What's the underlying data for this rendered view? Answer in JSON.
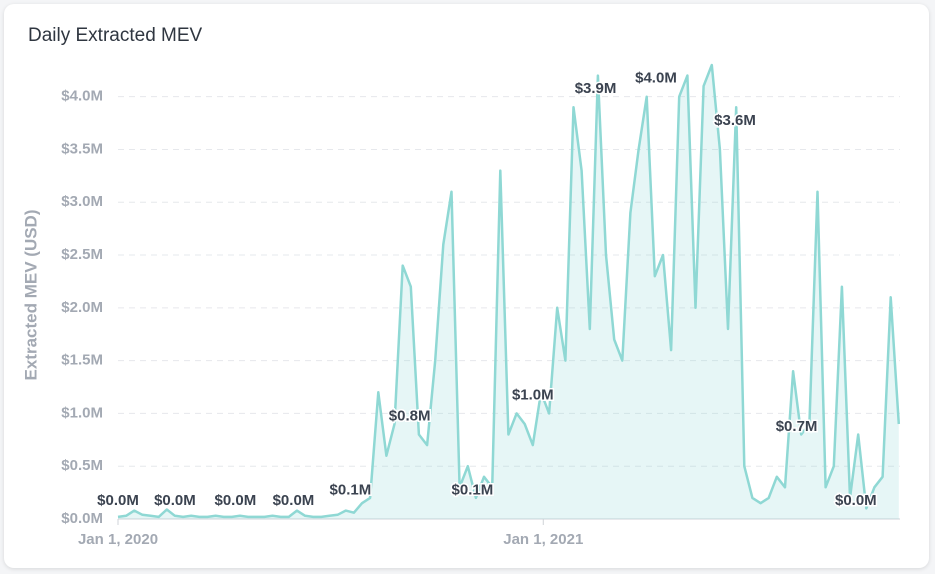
{
  "chart_data": {
    "type": "area",
    "title": "Daily Extracted MEV",
    "y_label": "Extracted MEV (USD)",
    "x": [
      "2020-01-01",
      "2020-01-08",
      "2020-01-15",
      "2020-01-22",
      "2020-01-29",
      "2020-02-05",
      "2020-02-12",
      "2020-02-19",
      "2020-02-26",
      "2020-03-04",
      "2020-03-11",
      "2020-03-18",
      "2020-03-25",
      "2020-04-01",
      "2020-04-08",
      "2020-04-15",
      "2020-04-22",
      "2020-04-29",
      "2020-05-06",
      "2020-05-13",
      "2020-05-20",
      "2020-05-27",
      "2020-06-03",
      "2020-06-10",
      "2020-06-17",
      "2020-06-24",
      "2020-07-01",
      "2020-07-08",
      "2020-07-15",
      "2020-07-22",
      "2020-07-29",
      "2020-08-05",
      "2020-08-12",
      "2020-08-19",
      "2020-08-26",
      "2020-09-02",
      "2020-09-09",
      "2020-09-16",
      "2020-09-23",
      "2020-09-30",
      "2020-10-07",
      "2020-10-14",
      "2020-10-21",
      "2020-10-28",
      "2020-11-04",
      "2020-11-11",
      "2020-11-18",
      "2020-11-25",
      "2020-12-02",
      "2020-12-09",
      "2020-12-16",
      "2020-12-23",
      "2020-12-30",
      "2021-01-06",
      "2021-01-13",
      "2021-01-20",
      "2021-01-27",
      "2021-02-03",
      "2021-02-10",
      "2021-02-17",
      "2021-02-24",
      "2021-03-03",
      "2021-03-10",
      "2021-03-17",
      "2021-03-24",
      "2021-03-31",
      "2021-04-07",
      "2021-04-14",
      "2021-04-21",
      "2021-04-28",
      "2021-05-05",
      "2021-05-12",
      "2021-05-19",
      "2021-05-26",
      "2021-06-02",
      "2021-06-09",
      "2021-06-16",
      "2021-06-23",
      "2021-06-30",
      "2021-07-07",
      "2021-07-14",
      "2021-07-21",
      "2021-07-28",
      "2021-08-04",
      "2021-08-11",
      "2021-08-18",
      "2021-08-25",
      "2021-09-01",
      "2021-09-08",
      "2021-09-15",
      "2021-09-22",
      "2021-09-29",
      "2021-10-06",
      "2021-10-13",
      "2021-10-20",
      "2021-10-27",
      "2021-11-03"
    ],
    "series": [
      {
        "name": "Extracted MEV",
        "color": "#8fd8d4",
        "values": [
          20000,
          30000,
          80000,
          40000,
          30000,
          20000,
          90000,
          30000,
          20000,
          30000,
          20000,
          20000,
          30000,
          20000,
          20000,
          30000,
          20000,
          20000,
          20000,
          30000,
          20000,
          20000,
          80000,
          30000,
          20000,
          20000,
          30000,
          40000,
          80000,
          60000,
          150000,
          200000,
          1200000,
          600000,
          900000,
          2400000,
          2200000,
          800000,
          700000,
          1500000,
          2600000,
          3100000,
          300000,
          500000,
          200000,
          400000,
          300000,
          3300000,
          800000,
          1000000,
          900000,
          700000,
          1200000,
          1000000,
          2000000,
          1500000,
          3900000,
          3300000,
          1800000,
          4200000,
          2500000,
          1700000,
          1500000,
          2900000,
          3500000,
          4000000,
          2300000,
          2500000,
          1600000,
          4000000,
          4200000,
          2000000,
          4100000,
          4300000,
          3500000,
          1800000,
          3900000,
          500000,
          200000,
          150000,
          200000,
          400000,
          300000,
          1400000,
          800000,
          900000,
          3100000,
          300000,
          500000,
          2200000,
          200000,
          800000,
          100000,
          300000,
          400000,
          2100000,
          900000
        ]
      }
    ],
    "annotations": [
      {
        "x": "2020-01-01",
        "value": 0,
        "label": "$0.0M"
      },
      {
        "x": "2020-02-19",
        "value": 0,
        "label": "$0.0M"
      },
      {
        "x": "2020-04-11",
        "value": 0,
        "label": "$0.0M"
      },
      {
        "x": "2020-05-31",
        "value": 0,
        "label": "$0.0M"
      },
      {
        "x": "2020-07-19",
        "value": 100000,
        "label": "$0.1M"
      },
      {
        "x": "2020-09-08",
        "value": 800000,
        "label": "$0.8M"
      },
      {
        "x": "2020-11-01",
        "value": 100000,
        "label": "$0.1M"
      },
      {
        "x": "2020-12-23",
        "value": 1000000,
        "label": "$1.0M"
      },
      {
        "x": "2021-02-15",
        "value": 3900000,
        "label": "$3.9M"
      },
      {
        "x": "2021-04-08",
        "value": 4000000,
        "label": "$4.0M"
      },
      {
        "x": "2021-06-15",
        "value": 3600000,
        "label": "$3.6M"
      },
      {
        "x": "2021-08-07",
        "value": 700000,
        "label": "$0.7M"
      },
      {
        "x": "2021-09-27",
        "value": 0,
        "label": "$0.0M"
      }
    ],
    "xlim": [
      "2020-01-01",
      "2021-11-04"
    ],
    "xticks": [
      {
        "value": "2020-01-01",
        "label": "Jan 1, 2020"
      },
      {
        "value": "2021-01-01",
        "label": "Jan 1, 2021"
      }
    ],
    "ylim": [
      0,
      4300000
    ],
    "yticks": [
      {
        "value": 0,
        "label": "$0.0M"
      },
      {
        "value": 500000,
        "label": "$0.5M"
      },
      {
        "value": 1000000,
        "label": "$1.0M"
      },
      {
        "value": 1500000,
        "label": "$1.5M"
      },
      {
        "value": 2000000,
        "label": "$2.0M"
      },
      {
        "value": 2500000,
        "label": "$2.5M"
      },
      {
        "value": 3000000,
        "label": "$3.0M"
      },
      {
        "value": 3500000,
        "label": "$3.5M"
      },
      {
        "value": 4000000,
        "label": "$4.0M"
      }
    ],
    "grid": true
  }
}
